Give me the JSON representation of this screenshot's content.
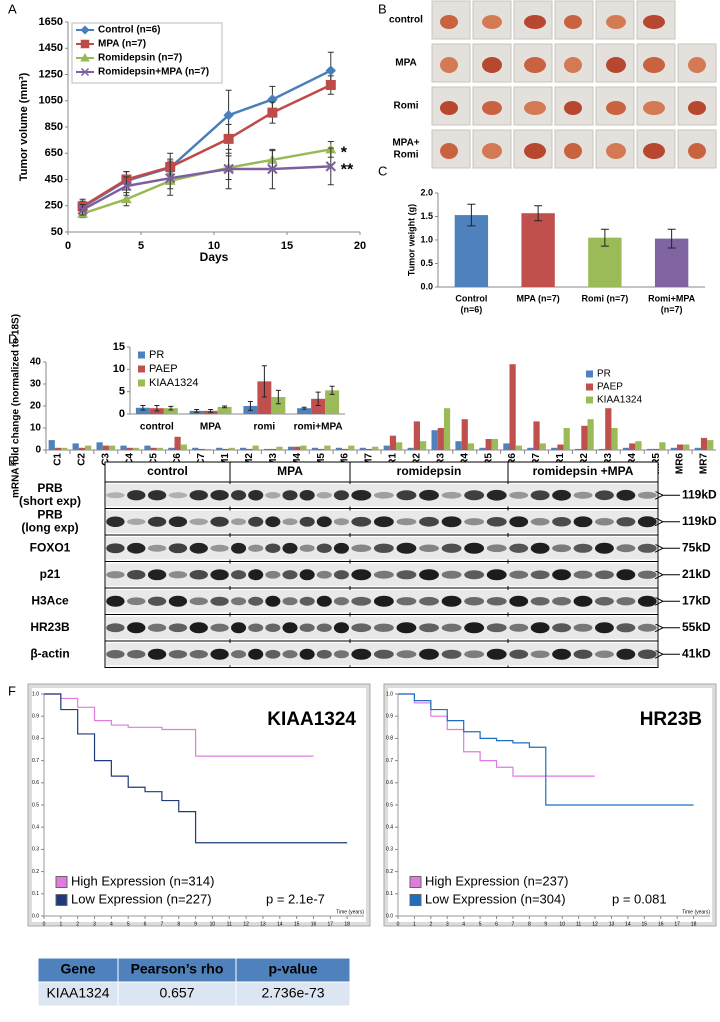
{
  "panel_labels": [
    "A",
    "B",
    "C",
    "D",
    "E",
    "F"
  ],
  "chart_data": [
    {
      "type": "line",
      "x_label": "Days",
      "y_label": "Tumor volume (mm³)",
      "legend": "upper-left",
      "x": [
        1,
        4,
        7,
        11,
        14,
        18
      ],
      "series": [
        {
          "name": "Control (n=6)",
          "color": "#4a7ebb",
          "marker": "diamond",
          "values": [
            240,
            440,
            540,
            940,
            1060,
            1280
          ],
          "errors": [
            60,
            70,
            110,
            190,
            100,
            140
          ]
        },
        {
          "name": "MPA (n=7)",
          "color": "#be4b48",
          "marker": "square",
          "values": [
            245,
            450,
            545,
            760,
            960,
            1170
          ],
          "errors": [
            40,
            60,
            60,
            110,
            80,
            70
          ]
        },
        {
          "name": "Romidepsin (n=7)",
          "color": "#98b954",
          "marker": "triangle",
          "values": [
            190,
            300,
            440,
            540,
            600,
            680
          ],
          "errors": [
            30,
            50,
            60,
            90,
            70,
            60
          ],
          "annotation": "*"
        },
        {
          "name": "Romidepsin+MPA (n=7)",
          "color": "#7d5fa0",
          "marker": "x",
          "values": [
            220,
            400,
            460,
            530,
            530,
            550
          ],
          "errors": [
            40,
            70,
            130,
            150,
            150,
            140
          ],
          "annotation": "**"
        }
      ],
      "xlim": [
        0,
        20
      ],
      "xticks": [
        0,
        5,
        10,
        15,
        20
      ],
      "ylim": [
        50,
        1650
      ],
      "yticks": [
        50,
        250,
        450,
        650,
        850,
        1050,
        1250,
        1450,
        1650
      ]
    },
    {
      "type": "bar",
      "y_label": "Tumor weight (g)",
      "categories": [
        [
          "Control",
          "(n=6)"
        ],
        [
          "MPA (n=7)"
        ],
        [
          "Romi (n=7)"
        ],
        [
          "Romi+MPA",
          "(n=7)"
        ]
      ],
      "values": [
        1.53,
        1.57,
        1.05,
        1.03
      ],
      "errors": [
        0.23,
        0.16,
        0.18,
        0.2
      ],
      "colors": [
        "#4f81bd",
        "#c0504d",
        "#9bbb59",
        "#8064a2"
      ],
      "ylim": [
        0,
        2
      ],
      "yticks": [
        {
          "value": 0,
          "label": "0.0"
        },
        {
          "value": 0.5,
          "label": "0.5"
        },
        {
          "value": 1,
          "label": "1.0"
        },
        {
          "value": 1.5,
          "label": "1.5"
        },
        {
          "value": 2,
          "label": "2.0"
        }
      ]
    },
    {
      "type": "bar",
      "y_label": "mRNA fold change (normalized to 18S)",
      "legend": "upper-right",
      "x_label_rotation": 90,
      "categories": [
        "C1",
        "C2",
        "C3",
        "C4",
        "C5",
        "C6",
        "C7",
        "M1",
        "M2",
        "M3",
        "M4",
        "M5",
        "M6",
        "M7",
        "R1",
        "R2",
        "R3",
        "R4",
        "R5",
        "R6",
        "R7",
        "MR1",
        "MR2",
        "MR3",
        "MR4",
        "MR5",
        "MR6",
        "MR7"
      ],
      "series": [
        {
          "name": "PR",
          "color": "#4f81bd",
          "values": [
            4.5,
            3,
            3.5,
            2,
            2,
            1,
            1,
            1,
            1,
            0.5,
            1.5,
            1,
            1,
            1,
            2,
            1,
            9,
            4,
            1,
            3,
            1,
            1,
            0.5,
            0.5,
            1,
            0.5,
            1,
            1
          ]
        },
        {
          "name": "PAEP",
          "color": "#c0504d",
          "values": [
            1,
            1,
            2,
            1,
            1,
            6,
            0.5,
            0.5,
            0.5,
            0.5,
            1.5,
            0.5,
            0.5,
            0.5,
            6.5,
            13,
            10,
            14,
            5,
            39,
            13,
            2.5,
            11,
            19,
            3,
            0.5,
            2.5,
            5.5
          ]
        },
        {
          "name": "KIAA1324",
          "color": "#9bbb59",
          "values": [
            1,
            2,
            2,
            1,
            1,
            2.5,
            0.5,
            1,
            2,
            1.5,
            2,
            2,
            2,
            1.5,
            3.5,
            4,
            19,
            3,
            5,
            2,
            3,
            10,
            14,
            10,
            4,
            3.5,
            2.5,
            4.5
          ]
        }
      ],
      "ylim": [
        0,
        40
      ],
      "yticks": [
        0,
        10,
        20,
        30,
        40
      ]
    },
    {
      "type": "bar",
      "legend": "upper-left",
      "categories": [
        "control",
        "MPA",
        "romi",
        "romi+MPA"
      ],
      "series": [
        {
          "name": "PR",
          "color": "#4f81bd",
          "values": [
            1.4,
            0.7,
            1.8,
            1.3
          ],
          "errors": [
            0.5,
            0.3,
            1,
            0.2
          ]
        },
        {
          "name": "PAEP",
          "color": "#c0504d",
          "values": [
            1.3,
            0.7,
            7.3,
            3.4
          ],
          "errors": [
            0.6,
            0.3,
            3.5,
            1.5
          ]
        },
        {
          "name": "KIAA1324",
          "color": "#9bbb59",
          "values": [
            1.3,
            1.6,
            3.8,
            5.3
          ],
          "errors": [
            0.4,
            0.2,
            1.5,
            0.9
          ]
        }
      ],
      "ylim": [
        0,
        15
      ],
      "yticks": [
        0,
        5,
        10,
        15
      ]
    },
    {
      "type": "line",
      "step": true,
      "title": "KIAA1324",
      "x_label": "Time (years)",
      "legend": "lower-left",
      "p_value": "p = 2.1e-7",
      "x": [
        0,
        1,
        2,
        3,
        4,
        5,
        6,
        7,
        8,
        9,
        10,
        11,
        12,
        13,
        14,
        15,
        16,
        17,
        18
      ],
      "series": [
        {
          "name": "High Expression (n=314)",
          "color": "#e07be0",
          "values": [
            1.0,
            0.98,
            0.94,
            0.88,
            0.86,
            0.85,
            0.85,
            0.84,
            0.84,
            0.72,
            0.72,
            0.72,
            0.72,
            0.72,
            0.72,
            0.72,
            0.72,
            null,
            null
          ]
        },
        {
          "name": "Low Expression (n=227)",
          "color": "#1f3a7a",
          "values": [
            1.0,
            0.93,
            0.82,
            0.7,
            0.63,
            0.58,
            0.56,
            0.52,
            0.47,
            0.33,
            0.33,
            0.33,
            0.33,
            0.33,
            0.33,
            0.33,
            0.33,
            0.33,
            0.33
          ]
        }
      ],
      "xlim": [
        0,
        19
      ],
      "xticks": [
        0,
        1,
        2,
        3,
        4,
        5,
        6,
        7,
        8,
        9,
        10,
        11,
        12,
        13,
        14,
        15,
        16,
        17,
        18
      ],
      "ylim": [
        0,
        1
      ],
      "yticks": [
        {
          "value": 0,
          "label": "0.0"
        },
        {
          "value": 0.1,
          "label": "0.1"
        },
        {
          "value": 0.2,
          "label": "0.2"
        },
        {
          "value": 0.3,
          "label": "0.3"
        },
        {
          "value": 0.4,
          "label": "0.4"
        },
        {
          "value": 0.5,
          "label": "0.5"
        },
        {
          "value": 0.6,
          "label": "0.6"
        },
        {
          "value": 0.7,
          "label": "0.7"
        },
        {
          "value": 0.8,
          "label": "0.8"
        },
        {
          "value": 0.9,
          "label": "0.9"
        },
        {
          "value": 1,
          "label": "1.0"
        }
      ]
    },
    {
      "type": "line",
      "step": true,
      "title": "HR23B",
      "x_label": "Time (years)",
      "legend": "lower-left",
      "p_value": "p = 0.081",
      "x": [
        0,
        1,
        2,
        3,
        4,
        5,
        6,
        7,
        8,
        9,
        10,
        11,
        12,
        13,
        14,
        15,
        16,
        17,
        18
      ],
      "series": [
        {
          "name": "High Expression (n=237)",
          "color": "#e07be0",
          "values": [
            1.0,
            0.96,
            0.9,
            0.84,
            0.74,
            0.7,
            0.67,
            0.63,
            0.63,
            0.63,
            0.63,
            0.63,
            0.63,
            null,
            null,
            null,
            null,
            null,
            null
          ]
        },
        {
          "name": "Low Expression (n=304)",
          "color": "#1f6fc0",
          "values": [
            1.0,
            0.97,
            0.93,
            0.88,
            0.83,
            0.8,
            0.79,
            0.78,
            0.76,
            0.5,
            0.5,
            0.5,
            0.5,
            0.5,
            0.5,
            0.5,
            0.5,
            0.5,
            0.5
          ]
        }
      ],
      "xlim": [
        0,
        19
      ],
      "xticks": [
        0,
        1,
        2,
        3,
        4,
        5,
        6,
        7,
        8,
        9,
        10,
        11,
        12,
        13,
        14,
        15,
        16,
        17,
        18
      ],
      "ylim": [
        0,
        1
      ],
      "yticks": [
        {
          "value": 0,
          "label": "0.0"
        },
        {
          "value": 0.1,
          "label": "0.1"
        },
        {
          "value": 0.2,
          "label": "0.2"
        },
        {
          "value": 0.3,
          "label": "0.3"
        },
        {
          "value": 0.4,
          "label": "0.4"
        },
        {
          "value": 0.5,
          "label": "0.5"
        },
        {
          "value": 0.6,
          "label": "0.6"
        },
        {
          "value": 0.7,
          "label": "0.7"
        },
        {
          "value": 0.8,
          "label": "0.8"
        },
        {
          "value": 0.9,
          "label": "0.9"
        },
        {
          "value": 1,
          "label": "1.0"
        }
      ]
    }
  ],
  "photos": {
    "rows": [
      [
        "control"
      ],
      [
        "MPA"
      ],
      [
        "Romi"
      ],
      [
        "MPA+",
        "Romi"
      ]
    ]
  },
  "blot": {
    "groups": [
      "control",
      "MPA",
      "romidepsin",
      "romidepsin +MPA"
    ],
    "rows": [
      {
        "label": [
          "PRB",
          "(short exp)"
        ],
        "size": "119kD"
      },
      {
        "label": [
          "PRB",
          "(long exp)"
        ],
        "size": "119kD"
      },
      {
        "label": [
          "FOXO1"
        ],
        "size": "75kD"
      },
      {
        "label": [
          "p21"
        ],
        "size": "21kD"
      },
      {
        "label": [
          "H3Ace"
        ],
        "size": "17kD"
      },
      {
        "label": [
          "HR23B"
        ],
        "size": "55kD"
      },
      {
        "label": [
          "β-actin"
        ],
        "size": "41kD"
      }
    ]
  },
  "table": {
    "header": [
      "Gene",
      "Pearson’s rho",
      "p-value"
    ],
    "rows": [
      [
        "KIAA1324",
        "0.657",
        "2.736e-73"
      ]
    ]
  }
}
